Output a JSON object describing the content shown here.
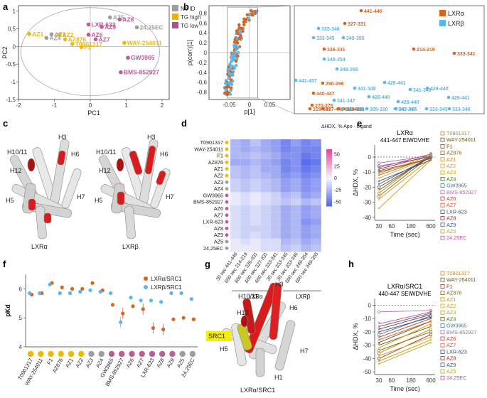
{
  "panel_labels": [
    "a",
    "b",
    "c",
    "d",
    "e",
    "f",
    "g",
    "h"
  ],
  "chart_data": [
    {
      "id": "a",
      "type": "scatter",
      "xlabel": "PC1",
      "ylabel": "PC2",
      "xlim": [
        -2,
        2.2
      ],
      "ylim": [
        -1.5,
        1.15
      ],
      "xticks": [
        "-2",
        "-1",
        "0",
        "1",
        "2"
      ],
      "yticks": [
        "1",
        "0,5",
        "0",
        "-0,5",
        "-1",
        "-1,5"
      ],
      "legend": [
        {
          "name": "No ID",
          "color": "#9e9e9e"
        },
        {
          "name": "TG high",
          "color": "#e8b400"
        },
        {
          "name": "TG low",
          "color": "#b0508a"
        }
      ],
      "points": [
        {
          "label": "AZ5",
          "x": 0.55,
          "y": 0.82,
          "group": "No ID"
        },
        {
          "label": "AZ8",
          "x": 0.82,
          "y": 0.76,
          "group": "TG low"
        },
        {
          "label": "LXR-623",
          "x": -0.05,
          "y": 0.62,
          "group": "TG low"
        },
        {
          "label": "AZ9",
          "x": 0.32,
          "y": 0.55,
          "group": "TG low"
        },
        {
          "label": "24,25EC",
          "x": 1.3,
          "y": 0.54,
          "group": "No ID"
        },
        {
          "label": "AZ1",
          "x": -1.7,
          "y": 0.35,
          "group": "TG high"
        },
        {
          "label": "AZ3",
          "x": -1.08,
          "y": 0.34,
          "group": "No ID"
        },
        {
          "label": "AZ2",
          "x": -0.86,
          "y": 0.33,
          "group": "TG high"
        },
        {
          "label": "AZ6",
          "x": -0.05,
          "y": 0.33,
          "group": "TG low"
        },
        {
          "label": "AZ4",
          "x": -1.22,
          "y": 0.24,
          "group": "No ID"
        },
        {
          "label": "AZ876",
          "x": -0.7,
          "y": 0.2,
          "group": "TG high"
        },
        {
          "label": "AZ7",
          "x": 0.15,
          "y": 0.2,
          "group": "TG low"
        },
        {
          "label": "T0901317",
          "x": -0.5,
          "y": 0.07,
          "group": "TG high"
        },
        {
          "label": "WAY-254011",
          "x": 0.95,
          "y": 0.1,
          "group": "TG high"
        },
        {
          "label": "F1",
          "x": -0.25,
          "y": -0.02,
          "group": "TG high"
        },
        {
          "label": "GW3965",
          "x": 1.05,
          "y": -0.32,
          "group": "TG low"
        },
        {
          "label": "BMS-852927",
          "x": 0.85,
          "y": -0.73,
          "group": "TG low"
        }
      ]
    },
    {
      "id": "b",
      "type": "scatter",
      "xlabel": "p[1]",
      "ylabel": "p(corr)[1]",
      "xticks": [
        "-0.05",
        "0",
        "0.05"
      ],
      "yticks": [
        "0,8",
        "0,6",
        "0,4",
        "0,2",
        "0",
        "-0,2",
        "-0,4",
        "-0,6",
        "-0,8"
      ],
      "legend": [
        {
          "name": "LXRα",
          "color": "#d9641c"
        },
        {
          "name": "LXRβ",
          "color": "#5db6e6"
        }
      ],
      "zoom_labels": [
        {
          "text": "441-446",
          "series": "LXRα"
        },
        {
          "text": "327-331",
          "series": "LXRα"
        },
        {
          "text": "333-346",
          "series": "LXRβ"
        },
        {
          "text": "333-345",
          "series": "LXRβ"
        },
        {
          "text": "349-355",
          "series": "LXRβ"
        },
        {
          "text": "326-331",
          "series": "LXRα"
        },
        {
          "text": "214-219",
          "series": "LXRα"
        },
        {
          "text": "349-354",
          "series": "LXRβ"
        },
        {
          "text": "333-341",
          "series": "LXRα"
        },
        {
          "text": "441-457",
          "series": "LXRβ"
        },
        {
          "text": "348-355",
          "series": "LXRβ"
        },
        {
          "text": "290-296",
          "series": "LXRα"
        },
        {
          "text": "341-349",
          "series": "LXRβ"
        },
        {
          "text": "426-441",
          "series": "LXRβ"
        },
        {
          "text": "341-346",
          "series": "LXRβ"
        },
        {
          "text": "429-440",
          "series": "LXRβ"
        },
        {
          "text": "429-441",
          "series": "LXRβ"
        },
        {
          "text": "440-447",
          "series": "LXRα"
        },
        {
          "text": "426-440",
          "series": "LXRβ"
        },
        {
          "text": "341-347",
          "series": "LXRβ"
        },
        {
          "text": "428-440",
          "series": "LXRβ"
        },
        {
          "text": "270-275",
          "series": "LXRα"
        },
        {
          "text": "341-348",
          "series": "LXRβ"
        },
        {
          "text": "320-331",
          "series": "LXRα"
        },
        {
          "text": "427-443",
          "series": "LXRα"
        },
        {
          "text": "342-348",
          "series": "LXRα"
        },
        {
          "text": "305-310",
          "series": "LXRβ"
        },
        {
          "text": "341-347",
          "series": "LXRβ"
        },
        {
          "text": "333-345",
          "series": "LXRβ"
        },
        {
          "text": "333-346",
          "series": "LXRβ"
        },
        {
          "text": "319-331",
          "series": "LXRα"
        },
        {
          "text": "341-348",
          "series": "LXRβ"
        },
        {
          "text": "347-355",
          "series": "LXRβ"
        }
      ]
    },
    {
      "id": "d",
      "type": "heatmap",
      "rows": [
        "T0901317",
        "WAY-254011",
        "F1",
        "AZ876",
        "AZ1",
        "AZ2",
        "AZ3",
        "AZ4",
        "GW3965",
        "BMS-852927",
        "AZ6",
        "AZ7",
        "LXR-623",
        "AZ8",
        "AZ9",
        "AZ5",
        "24,25EC"
      ],
      "row_groups": [
        "TG high",
        "TG high",
        "TG high",
        "TG high",
        "TG high",
        "TG high",
        "No ID",
        "No ID",
        "TG low",
        "TG low",
        "TG low",
        "TG low",
        "TG low",
        "TG low",
        "TG low",
        "No ID",
        "No ID"
      ],
      "columns": [
        "30 sec 441-446",
        "600 sec 214-219",
        "600 sec 326-331",
        "600 sec 327-331",
        "600 sec 333-341",
        "30 sec 333-345",
        "30 sec 333-346",
        "600 sec 349-354",
        "600 sec 349-355"
      ],
      "column_groups": [
        "LXRα",
        "LXRβ"
      ],
      "colorbar_title": "ΔHDX, % Apo - Ligand",
      "colorbar_ticks": [
        "50",
        "25",
        "0",
        "-25",
        "-50"
      ],
      "values": [
        [
          -25,
          -30,
          -20,
          -30,
          -35,
          -45,
          -35,
          -45,
          -40
        ],
        [
          -25,
          -30,
          -25,
          -30,
          -35,
          -45,
          -40,
          -45,
          -45
        ],
        [
          -25,
          -25,
          -20,
          -25,
          -30,
          -40,
          -40,
          -50,
          -45
        ],
        [
          -30,
          -30,
          -25,
          -30,
          -35,
          -45,
          -40,
          -55,
          -50
        ],
        [
          -20,
          -25,
          -20,
          -30,
          -30,
          -45,
          -40,
          -50,
          -45
        ],
        [
          -20,
          -25,
          -20,
          -25,
          -30,
          -40,
          -35,
          -45,
          -40
        ],
        [
          -15,
          -20,
          -15,
          -20,
          -25,
          -35,
          -30,
          -40,
          -35
        ],
        [
          -15,
          -20,
          -15,
          -20,
          -25,
          -35,
          -30,
          -40,
          -35
        ],
        [
          -5,
          -10,
          -5,
          -10,
          -15,
          -25,
          -20,
          -35,
          -30
        ],
        [
          -5,
          -10,
          -5,
          -10,
          -15,
          -20,
          -15,
          -25,
          -20
        ],
        [
          -10,
          -15,
          -10,
          -15,
          -20,
          -30,
          -25,
          -35,
          -30
        ],
        [
          -10,
          -15,
          -10,
          -15,
          -20,
          -30,
          -25,
          -35,
          -30
        ],
        [
          -10,
          -15,
          -10,
          -15,
          -20,
          -30,
          -25,
          -40,
          -35
        ],
        [
          -10,
          -15,
          -15,
          -15,
          -20,
          -30,
          -25,
          -35,
          -30
        ],
        [
          -10,
          -15,
          -10,
          -15,
          -20,
          -30,
          -25,
          -35,
          -30
        ],
        [
          -5,
          -10,
          -5,
          -10,
          -10,
          -25,
          -20,
          -30,
          -25
        ],
        [
          -5,
          -5,
          -5,
          -10,
          -10,
          -20,
          -15,
          -25,
          -20
        ]
      ]
    },
    {
      "id": "e",
      "type": "line",
      "title": "LXRα",
      "subtitle": "441-447 EIWDVHE",
      "xlabel": "Time (sec)",
      "ylabel": "ΔHDX, %",
      "xticks": [
        "30",
        "60",
        "180",
        "600"
      ],
      "yticks": [
        "0",
        "-10",
        "-20",
        "-30",
        "-40"
      ],
      "ylim": [
        -42,
        8
      ],
      "series": [
        {
          "name": "T0901317",
          "color": "#c8851c",
          "marker": "o",
          "values": [
            -24,
            2
          ]
        },
        {
          "name": "WAY-254011",
          "color": "#6b5a1e",
          "marker": "*",
          "values": [
            -22,
            1
          ]
        },
        {
          "name": "F1",
          "color": "#8b3a1a",
          "marker": "o",
          "values": [
            -20,
            0
          ]
        },
        {
          "name": "AZ876",
          "color": "#7a6a10",
          "marker": "o",
          "values": [
            -26,
            1
          ]
        },
        {
          "name": "AZ1",
          "color": "#e08a00",
          "marker": "x",
          "values": [
            -28,
            -1
          ]
        },
        {
          "name": "AZ2",
          "color": "#d4a020",
          "marker": "x",
          "values": [
            -14,
            0
          ]
        },
        {
          "name": "AZ3",
          "color": "#c8a000",
          "marker": "x",
          "values": [
            -34,
            -2
          ]
        },
        {
          "name": "AZ4",
          "color": "#4a6a1a",
          "marker": "x",
          "values": [
            -10,
            -1
          ]
        },
        {
          "name": "GW3965",
          "color": "#3a7a9a",
          "marker": "o",
          "values": [
            -6,
            0
          ]
        },
        {
          "name": "BMS-852927",
          "color": "#b06aa0",
          "marker": "o",
          "values": [
            -4,
            1
          ]
        },
        {
          "name": "AZ6",
          "color": "#c03a30",
          "marker": "x",
          "values": [
            -9,
            -1
          ]
        },
        {
          "name": "AZ7",
          "color": "#e0502a",
          "marker": "x",
          "values": [
            -12,
            0
          ]
        },
        {
          "name": "LXR-623",
          "color": "#2a4a7a",
          "marker": "x",
          "values": [
            -16,
            -2
          ]
        },
        {
          "name": "AZ8",
          "color": "#a02a2a",
          "marker": "x",
          "values": [
            -8,
            1
          ]
        },
        {
          "name": "AZ9",
          "color": "#3a5a8a",
          "marker": "x",
          "values": [
            -18,
            0
          ]
        },
        {
          "name": "AZ5",
          "color": "#a0b020",
          "marker": "x",
          "values": [
            -11,
            1
          ]
        },
        {
          "name": "24,25EC",
          "color": "#c84aa0",
          "marker": "*",
          "values": [
            -7,
            2
          ]
        }
      ]
    },
    {
      "id": "f",
      "type": "scatter",
      "xlabel": "",
      "ylabel": "pKd",
      "ylim": [
        4,
        6.5
      ],
      "yticks": [
        "6",
        "5",
        "4"
      ],
      "categories": [
        "T0901317",
        "WAY-254011",
        "F1",
        "AZ876",
        "AZ1",
        "AZ2",
        "AZ3",
        "AZ4",
        "GW3965",
        "BMS-852927",
        "AZ6",
        "AZ7",
        "LXR-623",
        "AZ8",
        "AZ9",
        "AZ5",
        "24,25EC"
      ],
      "category_groups": [
        "TG high",
        "TG high",
        "TG high",
        "TG high",
        "TG high",
        "TG high",
        "No ID",
        "No ID",
        "TG low",
        "TG low",
        "TG low",
        "TG low",
        "TG low",
        "TG low",
        "TG low",
        "No ID",
        "No ID"
      ],
      "series": [
        {
          "name": "LXRα/SRC1",
          "color": "#d9641c",
          "values": [
            5.8,
            5.85,
            6.2,
            6.05,
            6.0,
            6.0,
            6.2,
            5.95,
            5.45,
            5.15,
            5.4,
            5.3,
            4.65,
            4.6,
            4.95,
            5.0,
            4.95
          ]
        },
        {
          "name": "LXRβ/SRC1",
          "color": "#5db6e6",
          "values": [
            5.85,
            5.85,
            6.15,
            5.85,
            5.85,
            5.9,
            5.95,
            5.9,
            5.85,
            4.85,
            5.7,
            5.6,
            5.6,
            5.55,
            5.85,
            5.85,
            5.65
          ]
        }
      ]
    },
    {
      "id": "h",
      "type": "line",
      "title": "LXRα/SRC1",
      "subtitle": "440-447 SEIWDVHE",
      "xlabel": "Time (sec)",
      "ylabel": "ΔHDX, %",
      "xticks": [
        "30",
        "60",
        "180",
        "600"
      ],
      "yticks": [
        "0",
        "-10",
        "-20",
        "-30",
        "-40",
        "-50"
      ],
      "ylim": [
        -52,
        5
      ],
      "series": [
        {
          "name": "T0901317",
          "color": "#c8851c",
          "marker": "o",
          "values": [
            -36,
            -18
          ]
        },
        {
          "name": "WAY-254011",
          "color": "#6b5a1e",
          "marker": "*",
          "values": [
            -30,
            -16
          ]
        },
        {
          "name": "F1",
          "color": "#8b3a1a",
          "marker": "o",
          "values": [
            -40,
            -22
          ]
        },
        {
          "name": "AZ876",
          "color": "#7a6a10",
          "marker": "o",
          "values": [
            -34,
            -20
          ]
        },
        {
          "name": "AZ1",
          "color": "#e08a00",
          "marker": "x",
          "values": [
            -42,
            -26
          ]
        },
        {
          "name": "AZ2",
          "color": "#d4a020",
          "marker": "x",
          "values": [
            -38,
            -24
          ]
        },
        {
          "name": "AZ3",
          "color": "#c8a000",
          "marker": "x",
          "values": [
            -32,
            -14
          ]
        },
        {
          "name": "AZ4",
          "color": "#4a6a1a",
          "marker": "x",
          "values": [
            -28,
            -12
          ]
        },
        {
          "name": "GW3965",
          "color": "#3a7a9a",
          "marker": "o",
          "values": [
            -22,
            -8
          ]
        },
        {
          "name": "BMS-852927",
          "color": "#b06aa0",
          "marker": "o",
          "values": [
            -5,
            -4
          ]
        },
        {
          "name": "AZ6",
          "color": "#c03a30",
          "marker": "x",
          "values": [
            -24,
            -10
          ]
        },
        {
          "name": "AZ7",
          "color": "#e0502a",
          "marker": "x",
          "values": [
            -26,
            -12
          ]
        },
        {
          "name": "LXR-623",
          "color": "#2a4a7a",
          "marker": "x",
          "values": [
            -20,
            -9
          ]
        },
        {
          "name": "AZ8",
          "color": "#a02a2a",
          "marker": "x",
          "values": [
            -18,
            -7
          ]
        },
        {
          "name": "AZ9",
          "color": "#3a5a8a",
          "marker": "x",
          "values": [
            -16,
            -6
          ]
        },
        {
          "name": "AZ5",
          "color": "#a0b020",
          "marker": "x",
          "values": [
            -44,
            -28
          ]
        },
        {
          "name": "24,25EC",
          "color": "#c84aa0",
          "marker": "*",
          "values": [
            -14,
            -5
          ]
        }
      ]
    }
  ],
  "structures": {
    "c": {
      "left_label": "LXRα",
      "right_label": "LXRβ",
      "helices": [
        "H3",
        "H10/11",
        "H6",
        "H12",
        "H5",
        "H7"
      ]
    },
    "g": {
      "label": "LXRα/SRC1",
      "helices": [
        "H3",
        "H10/11",
        "H6",
        "H12",
        "H5",
        "H7",
        "H1"
      ],
      "coactivator": "SRC1"
    }
  },
  "group_colors": {
    "No ID": "#9e9e9e",
    "TG high": "#f0b800",
    "TG low": "#c05a9a"
  }
}
